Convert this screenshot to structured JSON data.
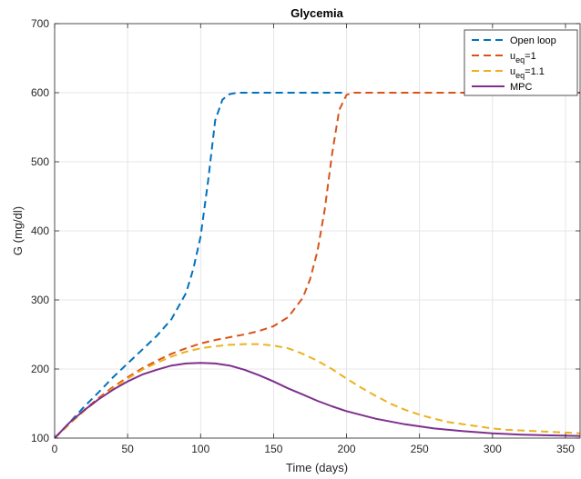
{
  "chart_data": {
    "type": "line",
    "title": "Glycemia",
    "xlabel": "Time (days)",
    "ylabel": "G (mg/dl)",
    "xlim": [
      0,
      360
    ],
    "ylim": [
      100,
      700
    ],
    "xticks": [
      0,
      50,
      100,
      150,
      200,
      250,
      300,
      350
    ],
    "yticks": [
      100,
      200,
      300,
      400,
      500,
      600,
      700
    ],
    "grid": true,
    "legend_position": "top-right",
    "series": [
      {
        "name": "Open loop",
        "legend_main": "Open loop",
        "legend_sub": "",
        "legend_suffix": "",
        "color": "#0072BD",
        "dash": "dashed",
        "x": [
          0,
          10,
          20,
          30,
          40,
          50,
          60,
          70,
          80,
          90,
          95,
          100,
          105,
          110,
          115,
          120,
          125,
          130,
          140,
          160,
          180,
          200
        ],
        "y": [
          100,
          122,
          145,
          166,
          188,
          208,
          228,
          248,
          272,
          310,
          345,
          392,
          470,
          560,
          590,
          598,
          600,
          600,
          600,
          600,
          600,
          600
        ]
      },
      {
        "name": "u_eq=1",
        "legend_main": "u",
        "legend_sub": "eq",
        "legend_suffix": "=1",
        "color": "#D95319",
        "dash": "dashed",
        "x": [
          0,
          10,
          20,
          30,
          40,
          50,
          60,
          70,
          80,
          90,
          100,
          110,
          120,
          130,
          140,
          150,
          160,
          170,
          175,
          180,
          185,
          190,
          195,
          200,
          205,
          210,
          240,
          270,
          300,
          330,
          360
        ],
        "y": [
          100,
          120,
          140,
          158,
          174,
          188,
          201,
          212,
          222,
          230,
          237,
          242,
          246,
          250,
          255,
          262,
          275,
          303,
          330,
          370,
          430,
          510,
          575,
          597,
          600,
          600,
          600,
          600,
          600,
          600,
          600
        ]
      },
      {
        "name": "u_eq=1.1",
        "legend_main": "u",
        "legend_sub": "eq",
        "legend_suffix": "=1.1",
        "color": "#EDB120",
        "dash": "dashed",
        "x": [
          0,
          10,
          20,
          30,
          40,
          50,
          60,
          70,
          80,
          90,
          100,
          110,
          120,
          130,
          140,
          150,
          160,
          170,
          180,
          190,
          200,
          210,
          220,
          230,
          240,
          250,
          260,
          270,
          280,
          290,
          300,
          310,
          320,
          330,
          340,
          350,
          360
        ],
        "y": [
          100,
          120,
          139,
          156,
          172,
          186,
          199,
          209,
          218,
          225,
          230,
          233,
          235,
          236,
          236,
          234,
          230,
          222,
          212,
          200,
          186,
          173,
          161,
          150,
          141,
          134,
          128,
          123,
          120,
          117,
          114,
          112,
          111,
          110,
          109,
          108,
          107
        ]
      },
      {
        "name": "MPC",
        "legend_main": "MPC",
        "legend_sub": "",
        "legend_suffix": "",
        "color": "#7E2F8E",
        "dash": "solid",
        "x": [
          0,
          10,
          20,
          30,
          40,
          50,
          60,
          70,
          80,
          90,
          100,
          110,
          120,
          130,
          140,
          150,
          160,
          170,
          180,
          190,
          200,
          220,
          240,
          260,
          280,
          300,
          320,
          340,
          360
        ],
        "y": [
          100,
          122,
          140,
          156,
          170,
          182,
          192,
          199,
          205,
          208,
          209,
          208,
          205,
          199,
          191,
          182,
          172,
          163,
          154,
          146,
          139,
          128,
          120,
          114,
          110,
          107,
          105,
          104,
          103
        ]
      }
    ]
  }
}
